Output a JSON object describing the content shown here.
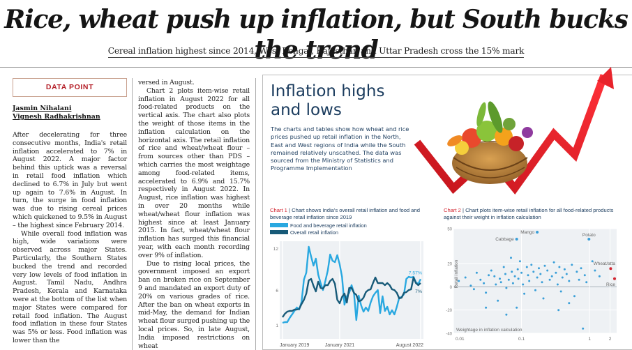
{
  "headline": "Rice, wheat push up inflation, but South bucks the trend",
  "subhead": "Cereal inflation highest since 2014, West Bengal, Rajasthan and Uttar Pradesh cross the 15% mark",
  "section_label": "DATA POINT",
  "authors": [
    "Jasmin Nihalani",
    "Vignesh Radhakrishnan"
  ],
  "article": {
    "col1": [
      "After decelerating for three consecutive months, India's retail inflation accelerated to 7% in August 2022. A major factor behind this uptick was a reversal in retail food inflation which declined to 6.7% in July but went up again to 7.6% in August. In turn, the surge in food inflation was due to rising cereal prices which quickened to 9.5% in August – the highest since February 2014.",
      "While overall food inflation was high, wide variations were observed across major States. Particularly, the Southern States bucked the trend and recorded very low levels of food inflation in August. Tamil Nadu, Andhra Pradesh, Kerala and Karnataka were at the bottom of the list when major States were compared for retail food inflation. The August food inflation in these four States was 5% or less. Food inflation was lower than the"
    ],
    "col2": [
      "versed in August.",
      "Chart 2 plots item-wise retail inflation in August 2022 for all food-related products on the vertical axis. The chart also plots the weight of those items in the inflation calculation on the horizontal axis. The retail inflation of rice and wheat/wheat flour – from sources other than PDS – which carries the most weightage among food-related items, accelerated to 6.9% and 15.7% respectively in August 2022. In August, rice inflation was highest in over 20 months while wheat/wheat flour inflation was highest since at least January 2015. In fact, wheat/wheat flour inflation has surged this financial year, with each month recording over 9% of inflation.",
      "Due to rising local prices, the government imposed an export ban on broken rice on September 9 and mandated an export duty of 20% on various grades of rice. After the ban on wheat exports in mid-May, the demand for Indian wheat flour surged pushing up the local prices. So, in late August, India imposed restrictions on wheat"
    ]
  },
  "infographic": {
    "title_line1": "Inflation highs",
    "title_line2": "and lows",
    "description": "The charts and tables show how wheat and rice prices pushed up retail inflation in the North, East and West regions of India while the South remained relatively unscathed. The data was sourced from the Ministry of Statistics and Programme Implementation"
  },
  "colors": {
    "headline": "#151515",
    "accent_red": "#d22530",
    "navy": "#1b3c5e",
    "food_line": "#29a8e0",
    "overall_line": "#175a78",
    "scatter_point": "#3a9fd8",
    "chart_bg": "#eef1f4"
  },
  "chart_data": [
    {
      "type": "line",
      "chart_label": "Chart 1",
      "caption": "Chart shows India's overall retail inflation and food and beverage retail inflation since 2019",
      "x_ticks": [
        "January 2019",
        "January 2021",
        "August 2022"
      ],
      "y_ticks": [
        1,
        6,
        12
      ],
      "ylim": [
        -1,
        13
      ],
      "series": [
        {
          "name": "Food and beverage retail inflation",
          "end_label": "7.57%",
          "color": "#29a8e0",
          "values": [
            1.3,
            1.4,
            1.4,
            2.0,
            2.5,
            3.0,
            3.5,
            3.2,
            4.3,
            7.5,
            8.5,
            12.2,
            10.8,
            9.5,
            10.5,
            8.2,
            7.0,
            6.0,
            7.3,
            8.8,
            11.1,
            10.2,
            10.0,
            11.0,
            9.7,
            7.9,
            3.9,
            5.1,
            5.6,
            6.7,
            5.6,
            1.7,
            5.2,
            3.8,
            2.9,
            3.5,
            3.0,
            4.2,
            5.1,
            5.6,
            6.0,
            2.7,
            5.1,
            3.0,
            3.6,
            2.5,
            3.1,
            2.5,
            3.6,
            4.9,
            5.0,
            5.4,
            7.6,
            7.9,
            7.8,
            7.9,
            7.1,
            6.9,
            7.57
          ]
        },
        {
          "name": "Overall retail inflation",
          "end_label": "7%",
          "color": "#175a78",
          "values": [
            2.1,
            2.6,
            2.9,
            3.0,
            3.0,
            3.2,
            3.2,
            3.3,
            4.0,
            4.6,
            5.5,
            7.4,
            7.6,
            6.6,
            5.8,
            7.2,
            6.3,
            6.2,
            6.7,
            6.7,
            7.3,
            7.6,
            6.9,
            4.6,
            4.1,
            5.0,
            5.5,
            4.2,
            6.3,
            6.3,
            5.6,
            5.3,
            4.4,
            4.5,
            4.9,
            5.7,
            6.0,
            6.1,
            7.0,
            7.8,
            7.0,
            7.0,
            7.0,
            6.7,
            7.0,
            6.7,
            6.1,
            6.0,
            5.6,
            4.8,
            4.9,
            5.6,
            5.7,
            6.0,
            6.1,
            7.8,
            7.0,
            6.7,
            7.0
          ]
        }
      ]
    },
    {
      "type": "scatter",
      "chart_label": "Chart 2",
      "caption": "Chart plots item-wise retail inflation for all food-related products against their weight in inflation calculation",
      "ylabel": "Retail inflation",
      "xlabel": "Weightage in inflation calculation",
      "x_scale": "log",
      "x_ticks": [
        "0.01",
        "0.1",
        "1",
        "2"
      ],
      "x_tick_values": [
        0.01,
        0.1,
        1,
        2
      ],
      "y_ticks": [
        50,
        20,
        0,
        -20,
        -40
      ],
      "ylim": [
        -40,
        50
      ],
      "xlim": [
        0.01,
        2.5
      ],
      "labeled_points": [
        {
          "label": "Mango",
          "x": 0.17,
          "y": 47,
          "highlight": false
        },
        {
          "label": "Cabbage",
          "x": 0.085,
          "y": 41,
          "highlight": false
        },
        {
          "label": "Potato",
          "x": 0.98,
          "y": 41,
          "highlight": false
        },
        {
          "label": "Wheat/atta",
          "x": 2.04,
          "y": 15.7,
          "highlight": true
        },
        {
          "label": "Rice",
          "x": 2.5,
          "y": 6.9,
          "highlight": true
        }
      ],
      "points": [
        [
          0.012,
          5
        ],
        [
          0.015,
          8
        ],
        [
          0.018,
          1
        ],
        [
          0.02,
          -2
        ],
        [
          0.022,
          12
        ],
        [
          0.025,
          6
        ],
        [
          0.028,
          3
        ],
        [
          0.03,
          -5
        ],
        [
          0.033,
          10
        ],
        [
          0.036,
          14
        ],
        [
          0.04,
          9
        ],
        [
          0.042,
          2
        ],
        [
          0.045,
          -12
        ],
        [
          0.048,
          7
        ],
        [
          0.05,
          4
        ],
        [
          0.055,
          17
        ],
        [
          0.058,
          11
        ],
        [
          0.06,
          -1
        ],
        [
          0.065,
          6
        ],
        [
          0.07,
          25
        ],
        [
          0.072,
          13
        ],
        [
          0.075,
          3
        ],
        [
          0.08,
          9
        ],
        [
          0.085,
          -18
        ],
        [
          0.088,
          15
        ],
        [
          0.09,
          7
        ],
        [
          0.095,
          22
        ],
        [
          0.1,
          12
        ],
        [
          0.105,
          2
        ],
        [
          0.11,
          -6
        ],
        [
          0.12,
          17
        ],
        [
          0.125,
          10
        ],
        [
          0.13,
          5
        ],
        [
          0.14,
          19
        ],
        [
          0.15,
          13
        ],
        [
          0.16,
          -3
        ],
        [
          0.17,
          8
        ],
        [
          0.18,
          16
        ],
        [
          0.19,
          11
        ],
        [
          0.2,
          4
        ],
        [
          0.21,
          -10
        ],
        [
          0.22,
          18
        ],
        [
          0.24,
          14
        ],
        [
          0.26,
          6
        ],
        [
          0.28,
          9
        ],
        [
          0.3,
          21
        ],
        [
          0.32,
          12
        ],
        [
          0.34,
          2
        ],
        [
          0.36,
          17
        ],
        [
          0.38,
          -4
        ],
        [
          0.4,
          8
        ],
        [
          0.43,
          15
        ],
        [
          0.46,
          11
        ],
        [
          0.5,
          5
        ],
        [
          0.55,
          19
        ],
        [
          0.6,
          -8
        ],
        [
          0.65,
          13
        ],
        [
          0.7,
          6
        ],
        [
          0.75,
          16
        ],
        [
          0.8,
          -36
        ],
        [
          0.85,
          10
        ],
        [
          0.9,
          4
        ],
        [
          1.1,
          22
        ],
        [
          1.2,
          14
        ],
        [
          1.4,
          9
        ],
        [
          0.35,
          -20
        ],
        [
          0.5,
          -14
        ],
        [
          0.03,
          -18
        ],
        [
          0.06,
          -24
        ]
      ]
    }
  ]
}
